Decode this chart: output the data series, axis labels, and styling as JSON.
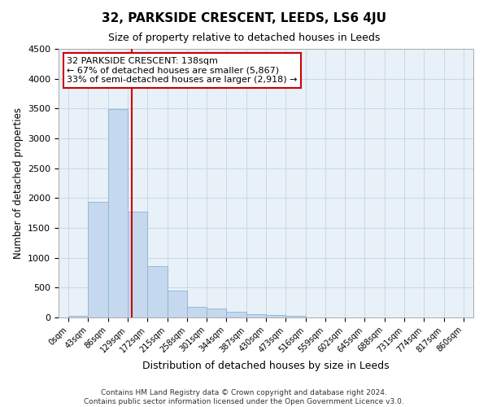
{
  "title": "32, PARKSIDE CRESCENT, LEEDS, LS6 4JU",
  "subtitle": "Size of property relative to detached houses in Leeds",
  "xlabel": "Distribution of detached houses by size in Leeds",
  "ylabel": "Number of detached properties",
  "bin_edges": [
    0,
    43,
    86,
    129,
    172,
    215,
    258,
    301,
    344,
    387,
    430,
    473,
    516,
    559,
    602,
    645,
    688,
    731,
    774,
    817,
    860
  ],
  "bin_labels": [
    "0sqm",
    "43sqm",
    "86sqm",
    "129sqm",
    "172sqm",
    "215sqm",
    "258sqm",
    "301sqm",
    "344sqm",
    "387sqm",
    "430sqm",
    "473sqm",
    "516sqm",
    "559sqm",
    "602sqm",
    "645sqm",
    "688sqm",
    "731sqm",
    "774sqm",
    "817sqm",
    "860sqm"
  ],
  "values": [
    30,
    1930,
    3490,
    1775,
    860,
    450,
    175,
    155,
    90,
    55,
    45,
    25,
    0,
    0,
    0,
    0,
    0,
    0,
    0,
    0
  ],
  "bar_color": "#c5d8ee",
  "bar_edge_color": "#8ab4d4",
  "grid_color": "#c8d8e8",
  "background_color": "#e8f0f8",
  "annotation_box_color": "#ffffff",
  "annotation_border_color": "#cc0000",
  "property_line_color": "#cc0000",
  "property_sqm": 138,
  "annotation_line1": "32 PARKSIDE CRESCENT: 138sqm",
  "annotation_line2": "← 67% of detached houses are smaller (5,867)",
  "annotation_line3": "33% of semi-detached houses are larger (2,918) →",
  "footer_line1": "Contains HM Land Registry data © Crown copyright and database right 2024.",
  "footer_line2": "Contains public sector information licensed under the Open Government Licence v3.0.",
  "ylim": [
    0,
    4500
  ],
  "yticks": [
    0,
    500,
    1000,
    1500,
    2000,
    2500,
    3000,
    3500,
    4000,
    4500
  ],
  "figsize": [
    6.0,
    5.0
  ],
  "dpi": 100
}
